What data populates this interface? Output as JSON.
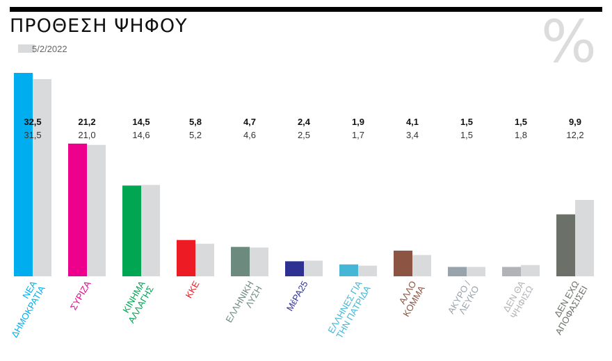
{
  "title": "ΠΡΟΘΕΣΗ ΨΗΦΟΥ",
  "legend_label": "5/2/2022",
  "unit_symbol": "%",
  "colors": {
    "previous": "#d9dadb"
  },
  "chart_data": {
    "type": "bar",
    "title": "ΠΡΟΘΕΣΗ ΨΗΦΟΥ",
    "ylim": [
      0,
      34
    ],
    "grid": false,
    "legend": "top-left",
    "categories": [
      {
        "lines": [
          "ΝΕΑ",
          "ΔΗΜΟΚΡΑΤΙΑ"
        ],
        "color": "#00aeef"
      },
      {
        "lines": [
          "ΣΥΡΙΖΑ"
        ],
        "color": "#ec008c"
      },
      {
        "lines": [
          "ΚΙΝΗΜΑ",
          "ΑΛΛΑΓΗΣ"
        ],
        "color": "#00a651"
      },
      {
        "lines": [
          "ΚΚΕ"
        ],
        "color": "#ed1c24"
      },
      {
        "lines": [
          "ΕΛΛΗΝΙΚΗ",
          "ΛΥΣΗ"
        ],
        "color": "#6d8a7e"
      },
      {
        "lines": [
          "ΜέΡΑ25"
        ],
        "color": "#2e3192"
      },
      {
        "lines": [
          "ΕΛΛΗΝΕΣ ΓΙΑ",
          "ΤΗΝ ΠΑΤΡΙΔΑ"
        ],
        "color": "#45b6d6"
      },
      {
        "lines": [
          "ΑΛΛΟ",
          "ΚΟΜΜΑ"
        ],
        "color": "#8c5443"
      },
      {
        "lines": [
          "ΑΚΥΡΟ /",
          "ΛΕΥΚΟ"
        ],
        "color": "#99a3ab"
      },
      {
        "lines": [
          "ΔΕΝ ΘΑ",
          "ΨΗΦΙΣΩ"
        ],
        "color": "#b1b3b6"
      },
      {
        "lines": [
          "ΔΕΝ ΕΧΩ",
          "ΑΠΟΦΑΣΙΣΕΙ"
        ],
        "color": "#6b7069"
      }
    ],
    "series": [
      {
        "values": [
          32.5,
          21.2,
          14.5,
          5.8,
          4.7,
          2.4,
          1.9,
          4.1,
          1.5,
          1.5,
          9.9
        ],
        "labels": [
          "32,5",
          "21,2",
          "14,5",
          "5,8",
          "4,7",
          "2,4",
          "1,9",
          "4,1",
          "1,5",
          "1,5",
          "9,9"
        ]
      },
      {
        "name": "5/2/2022",
        "values": [
          31.5,
          21.0,
          14.6,
          5.2,
          4.6,
          2.5,
          1.7,
          3.4,
          1.5,
          1.8,
          12.2
        ],
        "labels": [
          "31,5",
          "21,0",
          "14,6",
          "5,2",
          "4,6",
          "2,5",
          "1,7",
          "3,4",
          "1,5",
          "1,8",
          "12,2"
        ]
      }
    ]
  }
}
